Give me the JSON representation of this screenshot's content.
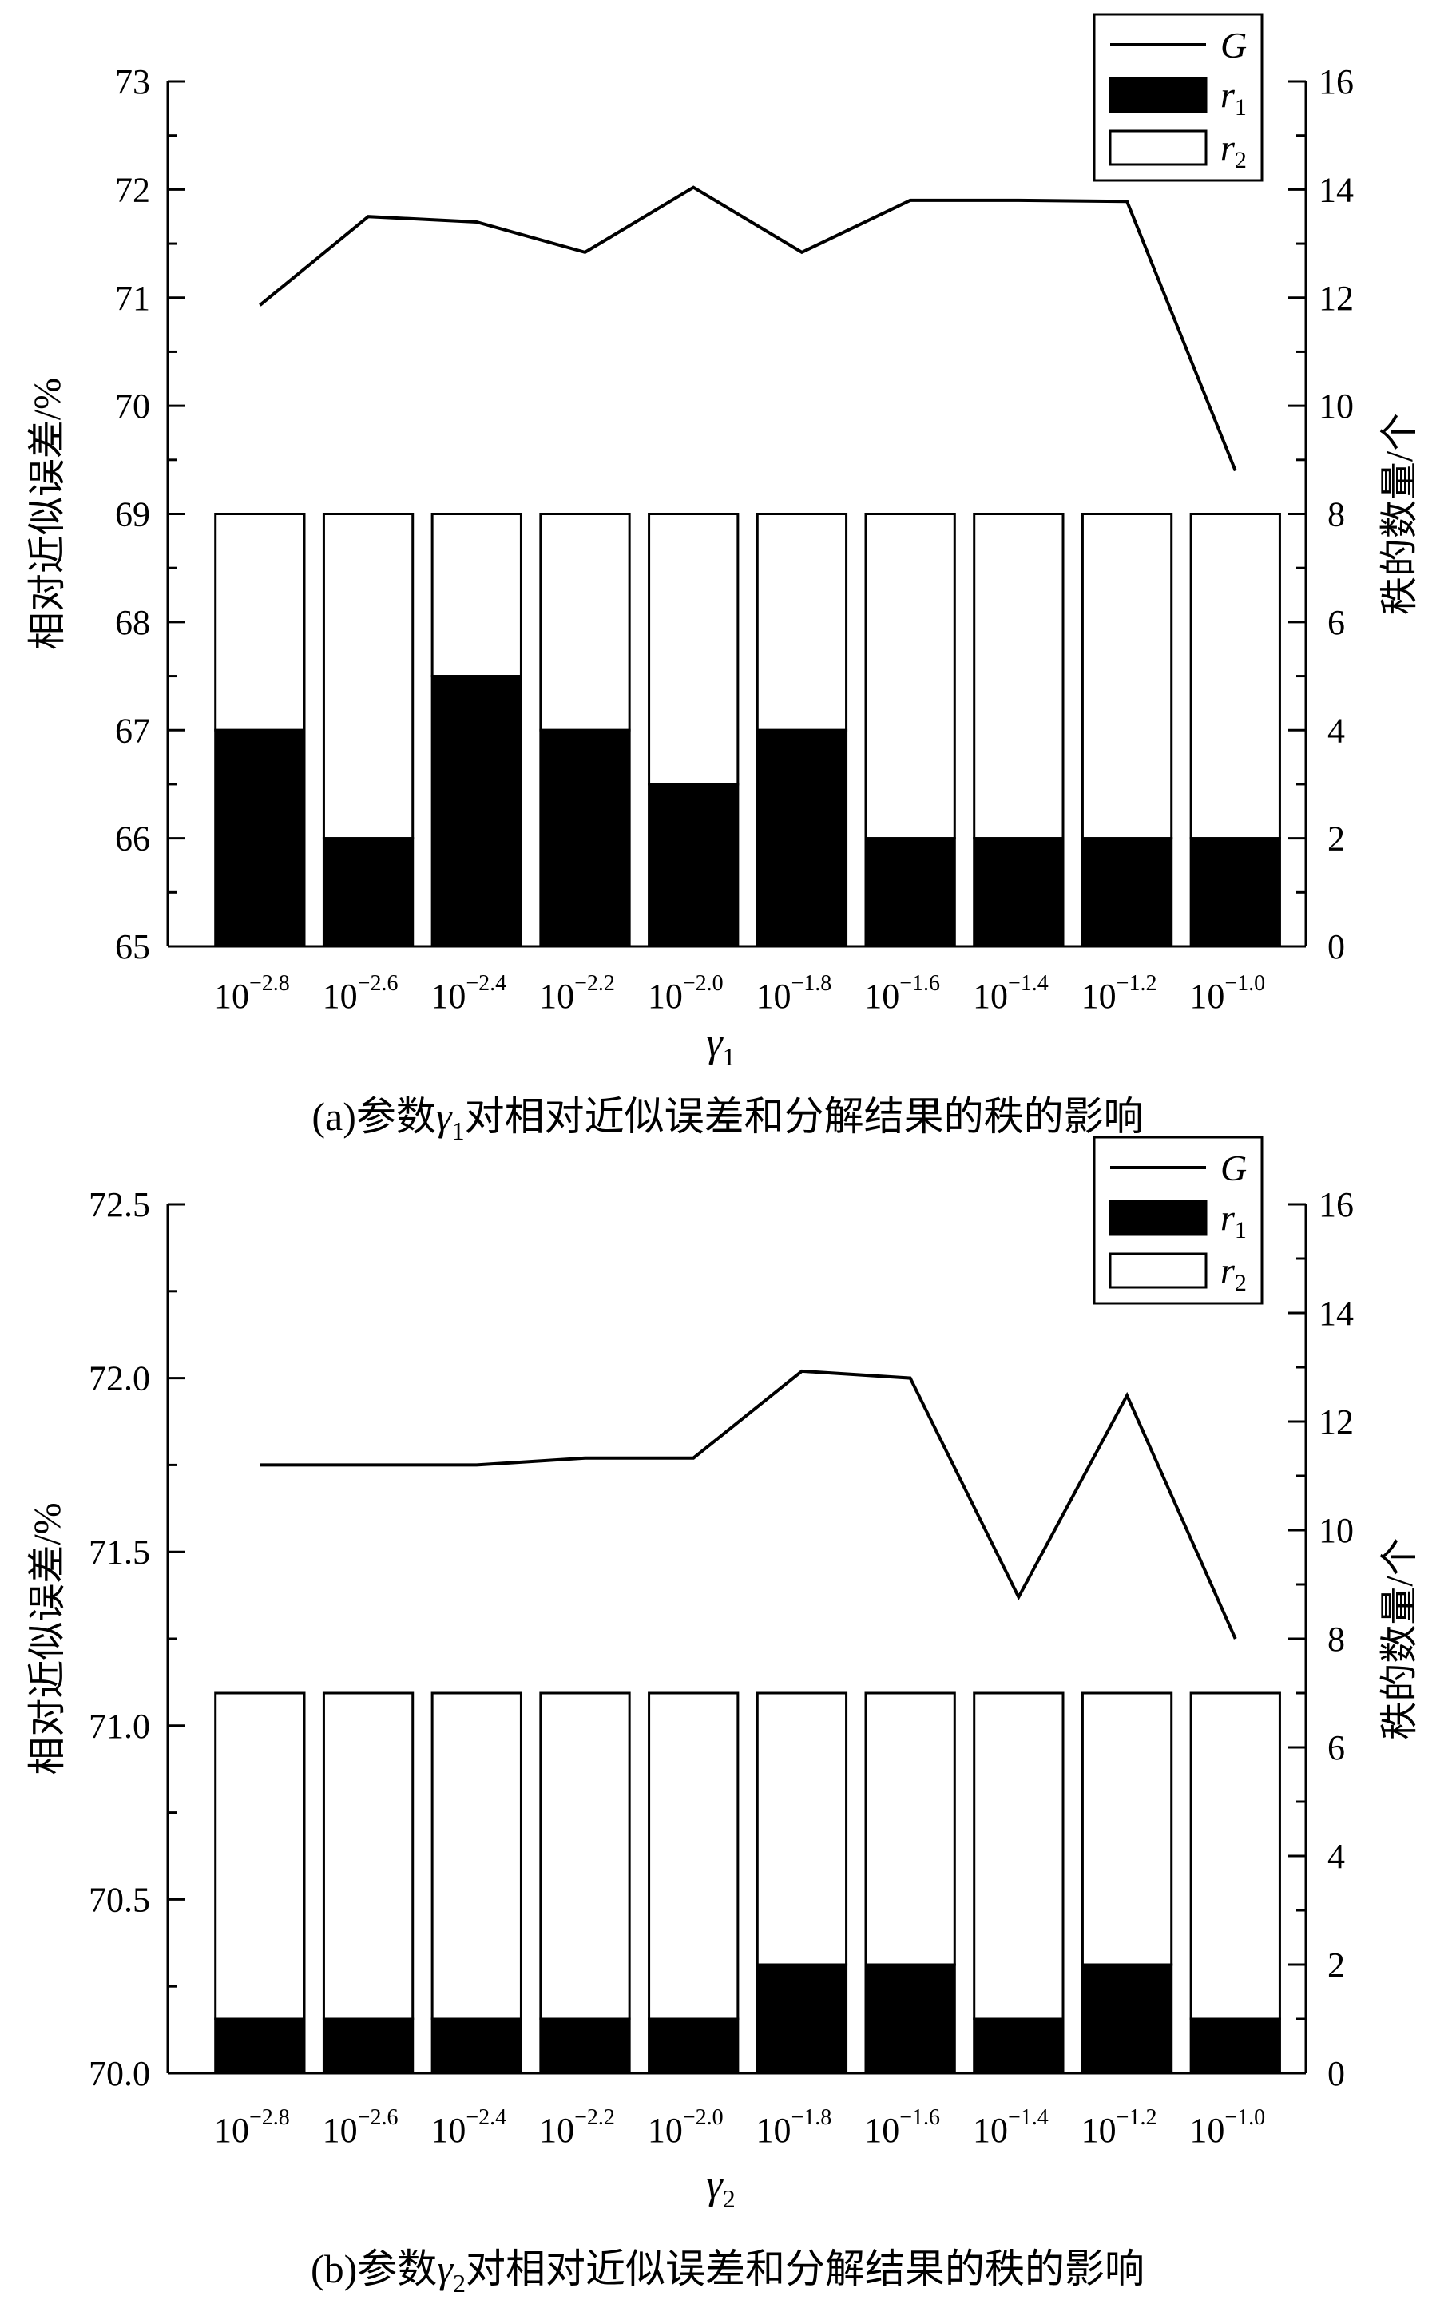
{
  "chart_data": [
    {
      "type": "bar",
      "caption": "(a)参数γ₁对相对近似误差和分解结果的秩的影响",
      "caption_parts": {
        "prefix": "(a)参数",
        "symbol": "γ",
        "sub": "1",
        "suffix": "对相对近似误差和分解结果的秩的影响"
      },
      "xlabel": {
        "symbol": "γ",
        "sub": "1"
      },
      "ylabel_left": "相对近似误差/%",
      "ylabel_right": "秩的数量/个",
      "categories": [
        {
          "base": "10",
          "exp": "−2.8"
        },
        {
          "base": "10",
          "exp": "−2.6"
        },
        {
          "base": "10",
          "exp": "−2.4"
        },
        {
          "base": "10",
          "exp": "−2.2"
        },
        {
          "base": "10",
          "exp": "−2.0"
        },
        {
          "base": "10",
          "exp": "−1.8"
        },
        {
          "base": "10",
          "exp": "−1.6"
        },
        {
          "base": "10",
          "exp": "−1.4"
        },
        {
          "base": "10",
          "exp": "−1.2"
        },
        {
          "base": "10",
          "exp": "−1.0"
        }
      ],
      "ylim_left": [
        65,
        73
      ],
      "yticks_left": [
        "65",
        "66",
        "67",
        "68",
        "69",
        "70",
        "71",
        "72",
        "73"
      ],
      "ylim_right": [
        0,
        16
      ],
      "yticks_right": [
        "0",
        "2",
        "4",
        "6",
        "8",
        "10",
        "12",
        "14",
        "16"
      ],
      "series": [
        {
          "name": "G",
          "axis": "left",
          "kind": "line",
          "values": [
            70.93,
            71.75,
            71.7,
            71.42,
            72.02,
            71.42,
            71.9,
            71.9,
            71.89,
            69.4
          ]
        },
        {
          "name": "r1",
          "axis": "right",
          "kind": "bar",
          "color": "#000000",
          "values": [
            4,
            2,
            5,
            4,
            3,
            4,
            2,
            2,
            2,
            2
          ]
        },
        {
          "name": "r2",
          "axis": "right",
          "kind": "bar",
          "color": "#ffffff",
          "values": [
            4,
            6,
            3,
            4,
            5,
            4,
            6,
            6,
            6,
            6
          ]
        }
      ],
      "legend": {
        "position": "top-right",
        "items": [
          {
            "label": "G",
            "sub": ""
          },
          {
            "label": "r",
            "sub": "1"
          },
          {
            "label": "r",
            "sub": "2"
          }
        ]
      }
    },
    {
      "type": "bar",
      "caption": "(b)参数γ₂对相对近似误差和分解结果的秩的影响",
      "caption_parts": {
        "prefix": "(b)参数",
        "symbol": "γ",
        "sub": "2",
        "suffix": "对相对近似误差和分解结果的秩的影响"
      },
      "xlabel": {
        "symbol": "γ",
        "sub": "2"
      },
      "ylabel_left": "相对近似误差/%",
      "ylabel_right": "秩的数量/个",
      "categories": [
        {
          "base": "10",
          "exp": "−2.8"
        },
        {
          "base": "10",
          "exp": "−2.6"
        },
        {
          "base": "10",
          "exp": "−2.4"
        },
        {
          "base": "10",
          "exp": "−2.2"
        },
        {
          "base": "10",
          "exp": "−2.0"
        },
        {
          "base": "10",
          "exp": "−1.8"
        },
        {
          "base": "10",
          "exp": "−1.6"
        },
        {
          "base": "10",
          "exp": "−1.4"
        },
        {
          "base": "10",
          "exp": "−1.2"
        },
        {
          "base": "10",
          "exp": "−1.0"
        }
      ],
      "ylim_left": [
        70.0,
        72.5
      ],
      "yticks_left": [
        "70.0",
        "70.5",
        "71.0",
        "71.5",
        "72.0",
        "72.5"
      ],
      "ylim_right": [
        0,
        16
      ],
      "yticks_right": [
        "0",
        "2",
        "4",
        "6",
        "8",
        "10",
        "12",
        "14",
        "16"
      ],
      "series": [
        {
          "name": "G",
          "axis": "left",
          "kind": "line",
          "values": [
            71.75,
            71.75,
            71.75,
            71.77,
            71.77,
            72.02,
            72.0,
            71.37,
            71.95,
            71.25
          ]
        },
        {
          "name": "r1",
          "axis": "right",
          "kind": "bar",
          "color": "#000000",
          "values": [
            1,
            1,
            1,
            1,
            1,
            2,
            2,
            1,
            2,
            1
          ]
        },
        {
          "name": "r2",
          "axis": "right",
          "kind": "bar",
          "color": "#ffffff",
          "values": [
            6,
            6,
            6,
            6,
            6,
            5,
            5,
            6,
            5,
            6
          ]
        }
      ],
      "legend": {
        "position": "top-right",
        "items": [
          {
            "label": "G",
            "sub": ""
          },
          {
            "label": "r",
            "sub": "1"
          },
          {
            "label": "r",
            "sub": "2"
          }
        ]
      }
    }
  ]
}
